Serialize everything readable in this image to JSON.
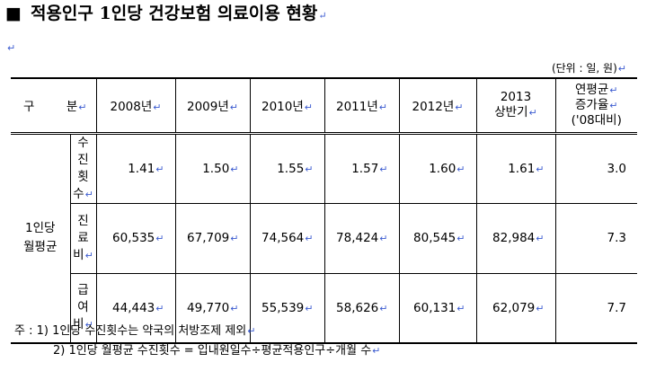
{
  "title": "적용인구 1인당 건강보험 의료이용 현황",
  "title_square": "■",
  "paragraph_mark": "↵",
  "unit": "(단위 : 일, 원)",
  "table": {
    "header": {
      "gubun_left": "구",
      "gubun_right": "분",
      "years": [
        "2008년",
        "2009년",
        "2010년",
        "2011년",
        "2012년"
      ],
      "half_line1": "2013",
      "half_line2": "상반기",
      "rate_line1": "연평균",
      "rate_line2": "증가율",
      "rate_line3": "('08대비)"
    },
    "group_line1": "1인당",
    "group_line2": "월평균",
    "rows": [
      {
        "label": [
          "수",
          "진",
          "횟",
          "수"
        ],
        "values": [
          "1.41",
          "1.50",
          "1.55",
          "1.57",
          "1.60",
          "1.61"
        ],
        "rate": "3.0"
      },
      {
        "label": [
          "진",
          "료",
          "비"
        ],
        "values": [
          "60,535",
          "67,709",
          "74,564",
          "78,424",
          "80,545",
          "82,984"
        ],
        "rate": "7.3"
      },
      {
        "label": [
          "급",
          "여",
          "비"
        ],
        "values": [
          "44,443",
          "49,770",
          "55,539",
          "58,626",
          "60,131",
          "62,079"
        ],
        "rate": "7.7"
      }
    ]
  },
  "notes": [
    "주 : 1) 1인당 수진횟수는 약국의 처방조제 제외",
    "2) 1인당 월평균 수진횟수 = 입내원일수÷평균적용인구÷개월 수"
  ]
}
